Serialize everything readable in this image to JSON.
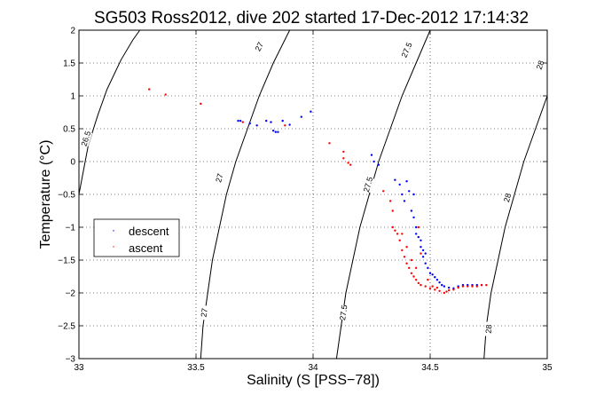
{
  "chart_data": {
    "type": "scatter",
    "title": "SG503 Ross2012, dive 202 started 17-Dec-2012 17:14:32",
    "xlabel": "Salinity (S [PSS−78])",
    "ylabel": "Temperature (°C)",
    "xlim": [
      33,
      35
    ],
    "ylim": [
      -3,
      2
    ],
    "x_ticks": [
      33,
      33.5,
      34,
      34.5,
      35
    ],
    "x_tick_labels": [
      "33",
      "33.5",
      "34",
      "34.5",
      "35"
    ],
    "y_ticks": [
      -3,
      -2.5,
      -2,
      -1.5,
      -1,
      -0.5,
      0,
      0.5,
      1,
      1.5,
      2
    ],
    "y_tick_labels": [
      "−3",
      "−2.5",
      "−2",
      "−1.5",
      "−1",
      "−0.5",
      "0",
      "0.5",
      "1",
      "1.5",
      "2"
    ],
    "grid": true,
    "legend_position": "left",
    "colors": {
      "descent": "#0000ff",
      "ascent": "#ff0000",
      "contour": "#000000",
      "grid": "#000000"
    },
    "density_contours": [
      {
        "label": "26.5",
        "points": [
          [
            33.0,
            -0.5
          ],
          [
            33.04,
            0.25
          ],
          [
            33.08,
            0.7
          ],
          [
            33.12,
            1.1
          ],
          [
            33.18,
            1.55
          ],
          [
            33.23,
            1.85
          ],
          [
            33.26,
            2.0
          ]
        ],
        "label_positions": [
          [
            33.03,
            0.35
          ]
        ]
      },
      {
        "label": "27",
        "points": [
          [
            33.52,
            -3.0
          ],
          [
            33.53,
            -2.5
          ],
          [
            33.55,
            -2.0
          ],
          [
            33.57,
            -1.5
          ],
          [
            33.6,
            -1.0
          ],
          [
            33.63,
            -0.5
          ],
          [
            33.67,
            0.0
          ],
          [
            33.72,
            0.5
          ],
          [
            33.77,
            1.0
          ],
          [
            33.83,
            1.5
          ],
          [
            33.9,
            2.0
          ]
        ],
        "label_positions": [
          [
            33.535,
            -2.3
          ],
          [
            33.6,
            -0.25
          ],
          [
            33.77,
            1.75
          ]
        ]
      },
      {
        "label": "27.5",
        "points": [
          [
            34.1,
            -3.0
          ],
          [
            34.12,
            -2.5
          ],
          [
            34.14,
            -2.0
          ],
          [
            34.17,
            -1.5
          ],
          [
            34.2,
            -1.0
          ],
          [
            34.24,
            -0.5
          ],
          [
            34.28,
            0.0
          ],
          [
            34.33,
            0.5
          ],
          [
            34.38,
            1.0
          ],
          [
            34.44,
            1.5
          ],
          [
            34.5,
            2.0
          ]
        ],
        "label_positions": [
          [
            34.13,
            -2.3
          ],
          [
            34.235,
            -0.35
          ],
          [
            34.4,
            1.7
          ]
        ]
      },
      {
        "label": "28",
        "points": [
          [
            34.73,
            -3.0
          ],
          [
            34.74,
            -2.5
          ],
          [
            34.76,
            -2.0
          ],
          [
            34.79,
            -1.5
          ],
          [
            34.82,
            -1.0
          ],
          [
            34.86,
            -0.5
          ],
          [
            34.9,
            0.0
          ],
          [
            34.95,
            0.5
          ],
          [
            35.0,
            1.0
          ]
        ],
        "label_positions": [
          [
            34.75,
            -2.55
          ],
          [
            34.83,
            -0.55
          ],
          [
            34.97,
            1.47
          ]
        ]
      }
    ],
    "series": [
      {
        "name": "descent",
        "points": [
          [
            33.68,
            0.62
          ],
          [
            33.69,
            0.62
          ],
          [
            33.73,
            0.58
          ],
          [
            33.76,
            0.55
          ],
          [
            33.8,
            0.62
          ],
          [
            33.82,
            0.6
          ],
          [
            33.83,
            0.47
          ],
          [
            33.84,
            0.45
          ],
          [
            33.85,
            0.45
          ],
          [
            33.87,
            0.62
          ],
          [
            33.9,
            0.56
          ],
          [
            33.95,
            0.68
          ],
          [
            33.99,
            0.76
          ],
          [
            34.25,
            0.1
          ],
          [
            34.26,
            0.0
          ],
          [
            34.28,
            -0.05
          ],
          [
            34.35,
            -0.28
          ],
          [
            34.37,
            -0.35
          ],
          [
            34.38,
            -0.5
          ],
          [
            34.39,
            -0.6
          ],
          [
            34.4,
            -0.3
          ],
          [
            34.41,
            -0.45
          ],
          [
            34.42,
            -0.75
          ],
          [
            34.43,
            -0.85
          ],
          [
            34.44,
            -1.0
          ],
          [
            34.45,
            -1.15
          ],
          [
            34.46,
            -1.3
          ],
          [
            34.47,
            -1.45
          ],
          [
            34.48,
            -1.55
          ],
          [
            34.49,
            -1.62
          ],
          [
            34.5,
            -1.7
          ],
          [
            34.51,
            -1.72
          ],
          [
            34.52,
            -1.76
          ],
          [
            34.53,
            -1.8
          ],
          [
            34.54,
            -1.84
          ],
          [
            34.55,
            -1.88
          ],
          [
            34.56,
            -1.9
          ],
          [
            34.58,
            -1.92
          ],
          [
            34.6,
            -1.93
          ],
          [
            34.62,
            -1.9
          ],
          [
            34.64,
            -1.88
          ],
          [
            34.66,
            -1.88
          ],
          [
            34.68,
            -1.88
          ],
          [
            34.7,
            -1.88
          ],
          [
            34.72,
            -1.88
          ],
          [
            34.43,
            -0.5
          ],
          [
            34.44,
            -1.1
          ],
          [
            34.46,
            -1.2
          ],
          [
            34.47,
            -1.35
          ],
          [
            34.48,
            -1.4
          ]
        ]
      },
      {
        "name": "ascent",
        "points": [
          [
            33.3,
            1.1
          ],
          [
            33.37,
            1.02
          ],
          [
            33.52,
            0.88
          ],
          [
            33.7,
            0.6
          ],
          [
            33.88,
            0.55
          ],
          [
            34.07,
            0.28
          ],
          [
            34.13,
            0.15
          ],
          [
            34.13,
            0.05
          ],
          [
            34.15,
            -0.02
          ],
          [
            34.16,
            -0.05
          ],
          [
            34.3,
            -0.45
          ],
          [
            34.33,
            -0.6
          ],
          [
            34.34,
            -0.75
          ],
          [
            34.34,
            -1.0
          ],
          [
            34.35,
            -1.05
          ],
          [
            34.36,
            -1.1
          ],
          [
            34.37,
            -1.2
          ],
          [
            34.38,
            -1.35
          ],
          [
            34.39,
            -1.45
          ],
          [
            34.4,
            -1.55
          ],
          [
            34.41,
            -1.62
          ],
          [
            34.42,
            -1.7
          ],
          [
            34.43,
            -1.75
          ],
          [
            34.44,
            -1.8
          ],
          [
            34.45,
            -1.85
          ],
          [
            34.46,
            -1.88
          ],
          [
            34.48,
            -1.9
          ],
          [
            34.5,
            -1.93
          ],
          [
            34.52,
            -1.95
          ],
          [
            34.54,
            -1.97
          ],
          [
            34.56,
            -2.0
          ],
          [
            34.57,
            -1.98
          ],
          [
            34.58,
            -1.96
          ],
          [
            34.6,
            -1.95
          ],
          [
            34.62,
            -1.92
          ],
          [
            34.64,
            -1.9
          ],
          [
            34.66,
            -1.9
          ],
          [
            34.68,
            -1.9
          ],
          [
            34.7,
            -1.9
          ],
          [
            34.72,
            -1.88
          ],
          [
            34.74,
            -1.88
          ],
          [
            34.38,
            -1.1
          ],
          [
            34.4,
            -1.3
          ],
          [
            34.42,
            -1.5
          ],
          [
            34.44,
            -1.62
          ],
          [
            34.45,
            -1.0
          ],
          [
            34.46,
            -1.4
          ],
          [
            34.49,
            -1.8
          ],
          [
            34.51,
            -1.9
          ],
          [
            34.53,
            -1.92
          ]
        ]
      }
    ]
  }
}
